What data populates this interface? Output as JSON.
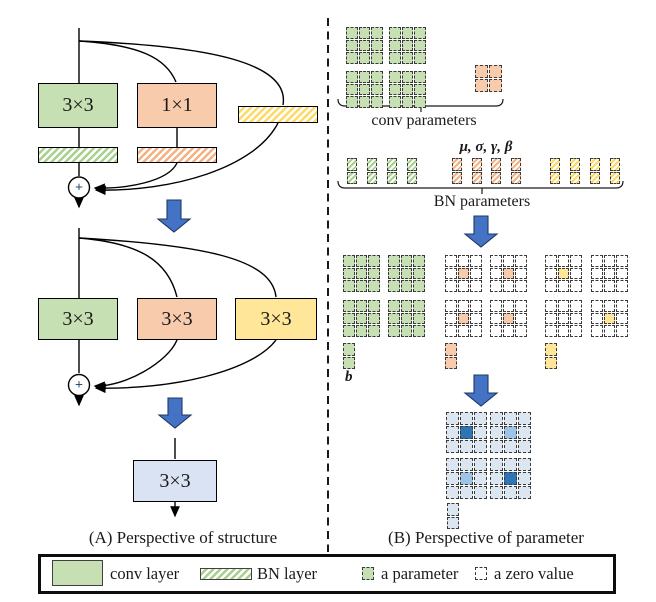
{
  "colors": {
    "green": "#c6e0b4",
    "orange": "#f8cbad",
    "yellow": "#ffe699",
    "blue_box": "#dae3f3",
    "light_blue": "#dce6f1",
    "medium_blue": "#9dc3e6",
    "dark_blue": "#2e75b6",
    "arrow_blue": "#4472c4",
    "arrow_outline": "#1f3864",
    "hatch_green": "#a9d18e",
    "hatch_orange": "#f4b183",
    "hatch_yellow": "#ffd966",
    "plus_sign": "#1f4e79",
    "line": "#000000"
  },
  "panel_a": {
    "caption": "(A) Perspective of structure",
    "plus_symbol": "+",
    "train_block": {
      "conv3_label": "3×3",
      "conv1_label": "1×1"
    },
    "merged_block": {
      "labels": [
        "3×3",
        "3×3",
        "3×3"
      ]
    },
    "final_block": {
      "label": "3×3"
    }
  },
  "panel_b": {
    "caption": "(B) Perspective of parameter",
    "conv_params_label": "conv parameters",
    "bn_greek_label": "μ, σ, γ, β",
    "bn_params_label": "BN parameters",
    "bias_label": "b",
    "stage1": {
      "conv3_grids": [
        [
          "ggg",
          "ggg",
          "ggg"
        ],
        [
          "ggg",
          "ggg",
          "ggg"
        ],
        [
          "ggg",
          "ggg",
          "ggg"
        ],
        [
          "ggg",
          "ggg",
          "ggg"
        ]
      ],
      "conv1_grid": [
        "oo",
        "oo"
      ]
    },
    "bn_row": {
      "green": [
        [
          "G",
          "G"
        ],
        [
          "G",
          "G"
        ],
        [
          "G",
          "G"
        ],
        [
          "G",
          "G"
        ]
      ],
      "orange": [
        [
          "O",
          "O"
        ],
        [
          "O",
          "O"
        ],
        [
          "O",
          "O"
        ],
        [
          "O",
          "O"
        ]
      ],
      "yellow": [
        [
          "Y",
          "Y"
        ],
        [
          "Y",
          "Y"
        ],
        [
          "Y",
          "Y"
        ],
        [
          "Y",
          "Y"
        ]
      ]
    },
    "stage2": {
      "conv3_grids": [
        [
          "ggg",
          "ggg",
          "ggg"
        ],
        [
          "ggg",
          "ggg",
          "ggg"
        ],
        [
          "ggg",
          "ggg",
          "ggg"
        ],
        [
          "ggg",
          "ggg",
          "ggg"
        ]
      ],
      "conv1_grids": [
        [
          "zzz",
          "zoz",
          "zzz"
        ],
        [
          "zzz",
          "zoz",
          "zzz"
        ],
        [
          "zzz",
          "zoz",
          "zzz"
        ],
        [
          "zzz",
          "zoz",
          "zzz"
        ]
      ],
      "identity_grids": [
        [
          "zzz",
          "zyz",
          "zzz"
        ],
        [
          "zzz",
          "zzz",
          "zzz"
        ],
        [
          "zzz",
          "zzz",
          "zzz"
        ],
        [
          "zzz",
          "zyz",
          "zzz"
        ]
      ],
      "bias": {
        "green": [
          "g",
          "g"
        ],
        "orange": [
          "o",
          "o"
        ],
        "yellow": [
          "y",
          "y"
        ]
      }
    },
    "stage3": {
      "merged_grids": [
        [
          "lll",
          "ldl",
          "lll"
        ],
        [
          "lll",
          "lml",
          "lll"
        ],
        [
          "lll",
          "lml",
          "lll"
        ],
        [
          "lll",
          "ldl",
          "lll"
        ]
      ],
      "bias": [
        "l",
        "l"
      ]
    }
  },
  "legend": {
    "conv_layer": "conv layer",
    "bn_layer": "BN layer",
    "a_parameter": "a parameter",
    "a_zero_value": "a zero value",
    "param_icon": [
      "g"
    ],
    "zero_icon": [
      "z"
    ]
  }
}
